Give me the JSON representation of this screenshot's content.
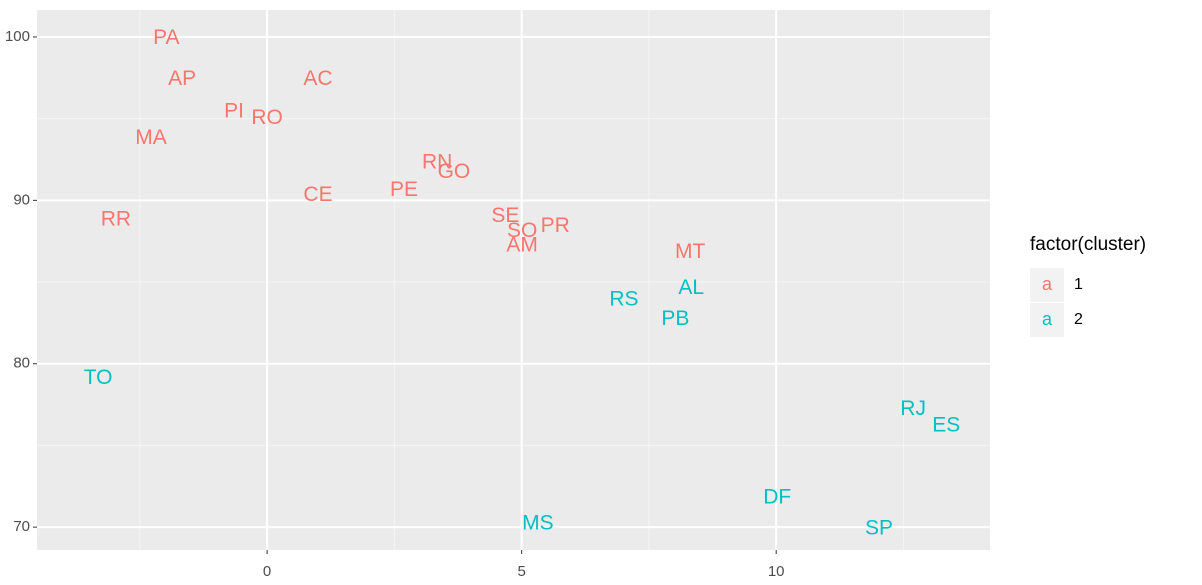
{
  "chart_data": {
    "type": "text-scatter",
    "legend_title": "factor(cluster)",
    "legend_key": "a",
    "legend_position": "right",
    "xlim": [
      -4.52,
      14.2
    ],
    "ylim": [
      68.6,
      101.65
    ],
    "xticks": [
      0,
      5,
      10
    ],
    "yticks": [
      70,
      80,
      90,
      100
    ],
    "x_minor_ticks": [
      -2.5,
      2.5,
      7.5,
      12.5
    ],
    "y_minor_ticks": [
      75,
      85,
      95
    ],
    "grid": true,
    "series": [
      {
        "name": "1",
        "color": "#F8766D",
        "labels": [
          "PA",
          "AP",
          "AC",
          "PI",
          "RO",
          "MA",
          "RN",
          "GO",
          "PE",
          "CE",
          "RR",
          "SE",
          "SO",
          "PR",
          "AM",
          "MT"
        ],
        "x": [
          -1.98,
          -1.67,
          1.0,
          -0.65,
          0.0,
          -2.28,
          3.34,
          3.67,
          2.69,
          1.0,
          -2.97,
          4.68,
          5.01,
          5.66,
          5.01,
          8.31
        ],
        "values": [
          99.9,
          97.4,
          97.4,
          95.4,
          95.0,
          93.8,
          92.3,
          91.7,
          90.6,
          90.3,
          88.8,
          89.0,
          88.1,
          88.4,
          87.2,
          86.8
        ]
      },
      {
        "name": "2",
        "color": "#00BFC4",
        "labels": [
          "AL",
          "RS",
          "PB",
          "TO",
          "RJ",
          "ES",
          "DF",
          "MS",
          "SP"
        ],
        "x": [
          8.33,
          7.01,
          8.02,
          -3.32,
          12.69,
          13.34,
          10.02,
          5.32,
          12.02
        ],
        "values": [
          84.6,
          83.9,
          82.7,
          79.1,
          77.2,
          76.2,
          71.8,
          70.2,
          69.9
        ]
      }
    ]
  }
}
